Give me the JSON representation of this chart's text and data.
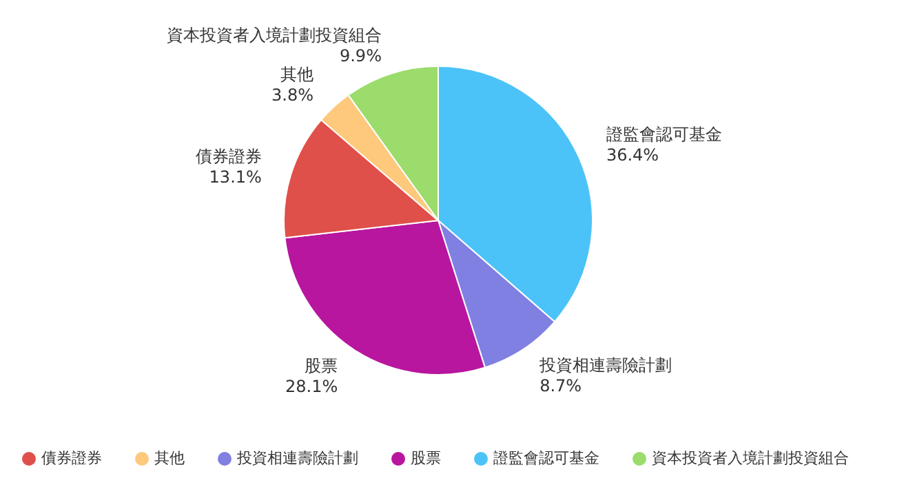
{
  "chart_data": {
    "type": "pie",
    "categories": [
      "證監會認可基金",
      "投資相連壽險計劃",
      "股票",
      "債券證券",
      "其他",
      "資本投資者入境計劃投資組合"
    ],
    "values": [
      36.4,
      8.7,
      28.1,
      13.1,
      3.8,
      9.9
    ],
    "value_labels": [
      "36.4%",
      "8.7%",
      "28.1%",
      "13.1%",
      "3.8%",
      "9.9%"
    ],
    "colors": [
      "#4cc3f8",
      "#8080e2",
      "#b8169f",
      "#e0504a",
      "#fec97c",
      "#9bdc6c"
    ],
    "legend": "bottom"
  }
}
